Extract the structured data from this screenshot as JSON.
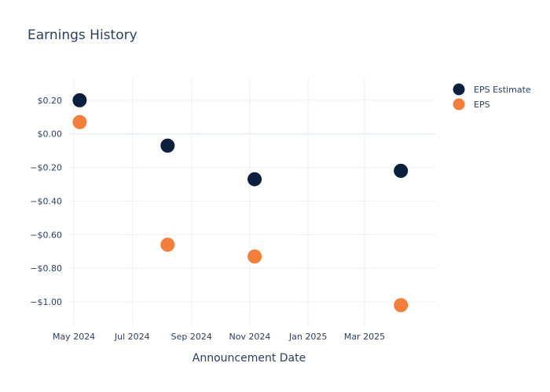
{
  "chart_data": {
    "type": "scatter",
    "title": "Earnings History",
    "xlabel": "Announcement Date",
    "ylabel": "",
    "x_tick_labels": [
      "May 2024",
      "Jul 2024",
      "Sep 2024",
      "Nov 2024",
      "Jan 2025",
      "Mar 2025"
    ],
    "x_tick_dates": [
      "2024-05-01",
      "2024-07-01",
      "2024-09-01",
      "2024-11-01",
      "2025-01-01",
      "2025-03-01"
    ],
    "xlim": [
      "2024-04-26",
      "2025-05-14"
    ],
    "y_tick_values": [
      0.2,
      0.0,
      -0.2,
      -0.4,
      -0.6,
      -0.8,
      -1.0
    ],
    "y_tick_labels": [
      "$0.20",
      "$0.00",
      "−$0.20",
      "−$0.40",
      "−$0.60",
      "−$0.80",
      "−$1.00"
    ],
    "ylim": [
      -1.14,
      0.33
    ],
    "grid": true,
    "legend_position": "top-right",
    "x": [
      "2024-05-07",
      "2024-08-07",
      "2024-11-06",
      "2025-04-08"
    ],
    "series": [
      {
        "name": "EPS Estimate",
        "color": "#0b1f3f",
        "values": [
          0.2,
          -0.07,
          -0.27,
          -0.22
        ]
      },
      {
        "name": "EPS",
        "color": "#f57f3a",
        "values": [
          0.07,
          -0.66,
          -0.73,
          -1.02
        ]
      }
    ]
  }
}
